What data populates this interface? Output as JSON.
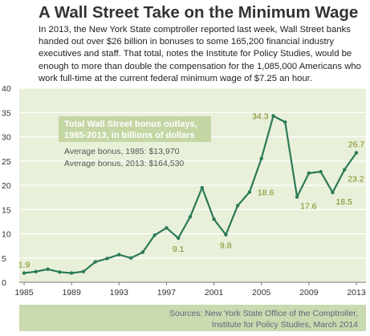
{
  "title": "A Wall Street Take on the Minimum Wage",
  "intro": "In 2013, the New York State comptroller reported last week, Wall Street banks handed out over $26 billion in bonuses to some 165,200 financial industry executives and staff. That total, notes the Institute for Policy Studies, would be enough to more than double the compensation for the 1,085,000 Americans who work full-time at the current federal minimum wage of $7.25 an hour.",
  "colors": {
    "plot_bg": "#e9f0da",
    "line": "#2a7a56",
    "label": "#7a8a1e",
    "legend_bg": "#c5d6a5",
    "source_bg": "#c9d9b0",
    "source_text": "#5a6a78"
  },
  "source": {
    "line1": "Sources: New York State Office of the Comptroller,",
    "line2": "Institute for Policy Studies, March 2014"
  },
  "chart_data": {
    "type": "line",
    "title": "Total Wall Street bonus outlays, 1985-2013, in billions of dollars",
    "title_line1": "Total Wall Street bonus outlays,",
    "title_line2": "1985-2013, in billions of dollars",
    "notes": [
      "Average bonus, 1985: $13,970",
      "Average bonus, 2013: $164,530"
    ],
    "ylim": [
      0,
      40
    ],
    "yticks": [
      0,
      5,
      10,
      15,
      20,
      25,
      30,
      35,
      40
    ],
    "xlim": [
      1985,
      2013
    ],
    "xticks": [
      1985,
      1989,
      1993,
      1997,
      2001,
      2005,
      2009,
      2013
    ],
    "grid": "horizontal",
    "series": [
      {
        "x": [
          1985,
          1986,
          1987,
          1988,
          1989,
          1990,
          1991,
          1992,
          1993,
          1994,
          1995,
          1996,
          1997,
          1998,
          1999,
          2000,
          2001,
          2002,
          2003,
          2004,
          2005,
          2006,
          2007,
          2008,
          2009,
          2010,
          2011,
          2012,
          2013
        ],
        "y": [
          1.9,
          2.2,
          2.7,
          2.1,
          1.9,
          2.2,
          4.2,
          4.9,
          5.7,
          5.0,
          6.2,
          9.7,
          11.2,
          9.1,
          13.5,
          19.5,
          13.0,
          9.8,
          15.8,
          18.6,
          25.5,
          34.3,
          33.0,
          17.6,
          22.5,
          22.8,
          18.5,
          23.2,
          26.7
        ]
      }
    ],
    "data_labels": [
      {
        "x": 1985,
        "y": 1.9,
        "text": "1.9",
        "pos": "above"
      },
      {
        "x": 1998,
        "y": 9.1,
        "text": "9.1",
        "pos": "below"
      },
      {
        "x": 2002,
        "y": 9.8,
        "text": "9.8",
        "pos": "below"
      },
      {
        "x": 2004,
        "y": 18.6,
        "text": "18.6",
        "pos": "right"
      },
      {
        "x": 2006,
        "y": 34.3,
        "text": "34.3",
        "pos": "left"
      },
      {
        "x": 2008,
        "y": 17.6,
        "text": "17.6",
        "pos": "below-right"
      },
      {
        "x": 2011,
        "y": 18.5,
        "text": "18.5",
        "pos": "below-right"
      },
      {
        "x": 2012,
        "y": 23.2,
        "text": "23.2",
        "pos": "below-right"
      },
      {
        "x": 2013,
        "y": 26.7,
        "text": "26.7",
        "pos": "above"
      }
    ]
  }
}
